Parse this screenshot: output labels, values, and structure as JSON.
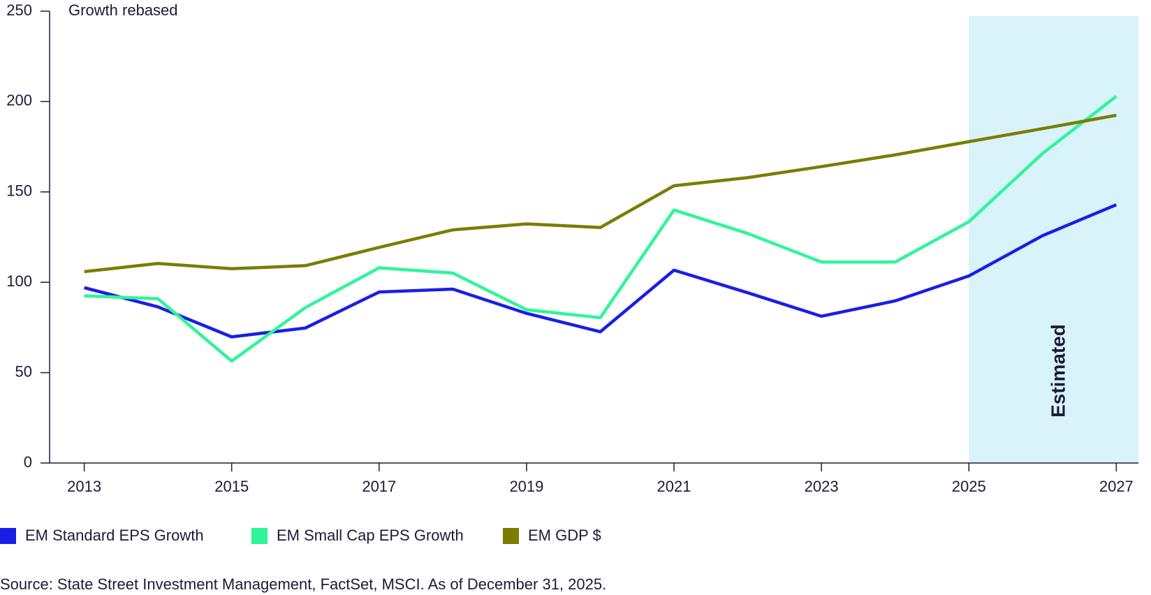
{
  "chart_data": {
    "type": "line",
    "y_axis_label": "Growth rebased",
    "x": [
      2013,
      2014,
      2015,
      2016,
      2017,
      2018,
      2019,
      2020,
      2021,
      2022,
      2023,
      2024,
      2025,
      2026,
      2027
    ],
    "series": [
      {
        "name": "EM Standard EPS Growth",
        "color": "#1a1ee6",
        "values": [
          97,
          86.4,
          69.8,
          74.7,
          94.6,
          96.2,
          82.8,
          72.6,
          106.7,
          94.2,
          81.2,
          89.7,
          103.5,
          125.8,
          142.9
        ]
      },
      {
        "name": "EM Small Cap EPS Growth",
        "color": "#2ef59a",
        "values": [
          92.5,
          90.9,
          56.4,
          86,
          108,
          105.1,
          84.8,
          80.4,
          140,
          127,
          111.2,
          111.2,
          133.5,
          171.3,
          202.9
        ]
      },
      {
        "name": "EM GDP $",
        "color": "#7a7d00",
        "values": [
          105.9,
          110.4,
          107.5,
          109.2,
          119.3,
          129,
          132.3,
          130.3,
          153.4,
          157.9,
          164,
          170.5,
          177.8,
          185,
          192.4
        ]
      }
    ],
    "xlim": [
      2012.53,
      2027.3
    ],
    "xticks": [
      2013,
      2015,
      2017,
      2019,
      2021,
      2023,
      2025,
      2027
    ],
    "ylim": [
      0,
      250
    ],
    "yticks": [
      0,
      50,
      100,
      150,
      200,
      250
    ],
    "shaded_region": {
      "from": 2025,
      "to": 2027.3,
      "label": "Estimated",
      "color": "#d9f3fb"
    },
    "source": "Source: State Street Investment Management, FactSet, MSCI. As of December 31, 2025."
  }
}
